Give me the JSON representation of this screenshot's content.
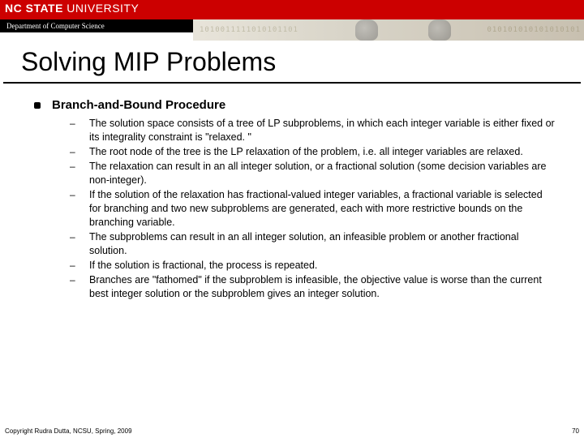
{
  "header": {
    "university_bold": "NC STATE",
    "university_thin": " UNIVERSITY",
    "department": "Department of Computer Science",
    "binary_left": "1010011111010101101",
    "binary_right": "010101010101010101"
  },
  "title": "Solving MIP Problems",
  "main_item": "Branch-and-Bound Procedure",
  "bullets": [
    "The solution space consists of a tree of LP subproblems, in which each integer variable is either fixed or its integrality constraint is \"relaxed. \"",
    "The root node of the tree is the LP relaxation of the problem, i.e. all integer variables are relaxed.",
    "The relaxation can result in an all integer solution, or a fractional solution (some decision variables are non-integer).",
    "If the solution of the relaxation has fractional-valued integer variables, a fractional variable is selected for branching and two new subproblems are generated, each with more restrictive bounds on the branching variable.",
    "The subproblems can result in an all integer solution, an infeasible problem or another fractional solution.",
    "If the solution is fractional, the process is repeated.",
    "Branches are \"fathomed\" if the subproblem is infeasible, the objective value is worse than the current best integer solution or the subproblem gives an integer solution."
  ],
  "footer": {
    "copyright": "Copyright Rudra Dutta, NCSU, Spring, 2009",
    "page": "70"
  },
  "colors": {
    "brand_red": "#cc0000",
    "black": "#000000",
    "white": "#ffffff"
  }
}
